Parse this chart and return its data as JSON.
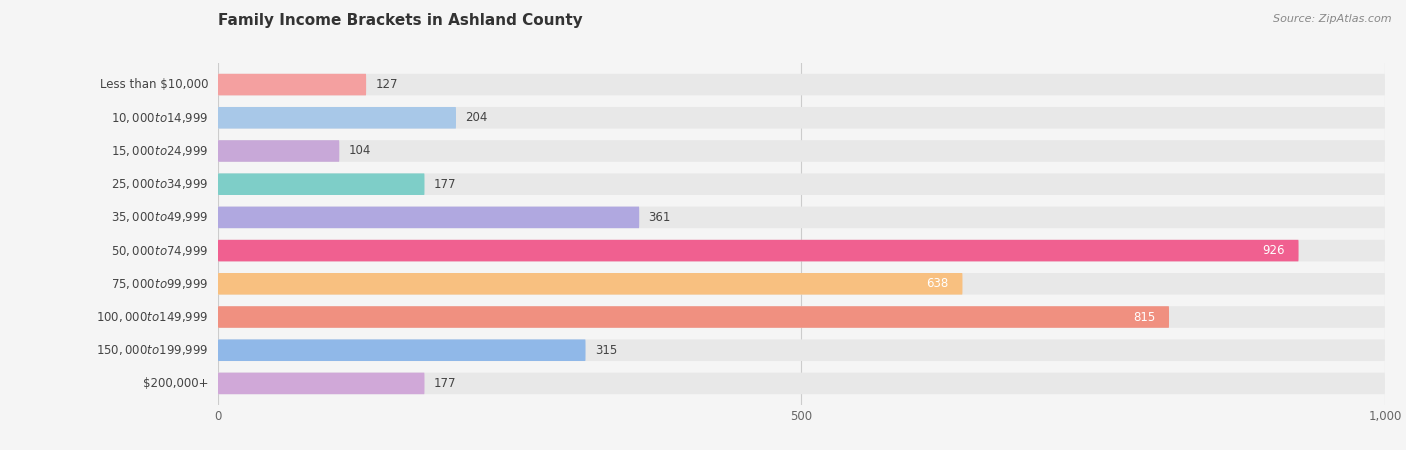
{
  "title": "Family Income Brackets in Ashland County",
  "source": "Source: ZipAtlas.com",
  "categories": [
    "Less than $10,000",
    "$10,000 to $14,999",
    "$15,000 to $24,999",
    "$25,000 to $34,999",
    "$35,000 to $49,999",
    "$50,000 to $74,999",
    "$75,000 to $99,999",
    "$100,000 to $149,999",
    "$150,000 to $199,999",
    "$200,000+"
  ],
  "values": [
    127,
    204,
    104,
    177,
    361,
    926,
    638,
    815,
    315,
    177
  ],
  "colors": [
    "#F4A0A0",
    "#A8C8E8",
    "#C8A8D8",
    "#7ECEC8",
    "#B0A8E0",
    "#F06090",
    "#F8C080",
    "#F09080",
    "#90B8E8",
    "#D0A8D8"
  ],
  "xlim": [
    0,
    1000
  ],
  "xticks": [
    0,
    500,
    1000
  ],
  "xticklabels": [
    "0",
    "500",
    "1,000"
  ],
  "background_color": "#f5f5f5",
  "bar_bg_color": "#e8e8e8",
  "title_fontsize": 11,
  "label_fontsize": 8.5,
  "value_fontsize": 8.5,
  "bar_height": 0.65
}
